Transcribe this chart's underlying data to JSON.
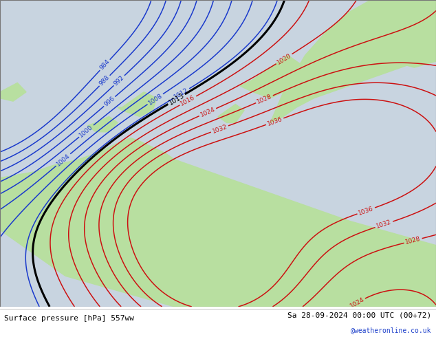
{
  "title_left": "Surface pressure [hPa] 557ww",
  "title_right": "Sa 28-09-2024 00:00 UTC (00+72)",
  "watermark": "@weatheronline.co.uk",
  "bg_color_ocean": "#c8d4e0",
  "bg_color_land": "#b8dfa0",
  "text_color_blue": "#1a3acc",
  "text_color_red": "#cc1111",
  "text_color_black": "#000000",
  "label_fontsize": 6.5,
  "footer_fontsize": 8
}
